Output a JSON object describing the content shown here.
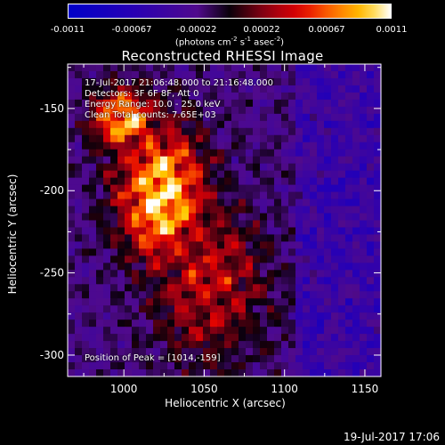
{
  "chart_data": {
    "type": "heatmap",
    "title": "Reconstructed RHESSI Image",
    "xlabel": "Heliocentric X (arcsec)",
    "ylabel": "Heliocentric Y (arcsec)",
    "xlim": [
      965,
      1160
    ],
    "ylim": [
      -313,
      -123
    ],
    "x_ticks": [
      1000,
      1050,
      1100,
      1150
    ],
    "y_ticks": [
      -150,
      -200,
      -250,
      -300
    ],
    "colorbar": {
      "ticks": [
        "-0.0011",
        "-0.00067",
        "-0.00022",
        "0.00022",
        "0.00067",
        "0.0011"
      ],
      "range": [
        -0.0011,
        0.0011
      ],
      "units": {
        "text": "(photons cm",
        "e1": "-2",
        "t2": " s",
        "e2": "-1",
        "t3": " asec",
        "e3": "-2",
        "t4": ")"
      }
    },
    "annotations": [
      "17-Jul-2017 21:06:48.000 to 21:16:48.000",
      "Detectors: 3F 6F 8F, Att 0",
      "Energy Range: 10.0 - 25.0 keV",
      "Clean     Total counts: 7.65E+03"
    ],
    "peak_label": "Position of Peak = [1014,-159]",
    "peak": [
      1014,
      -159
    ],
    "grid": false
  },
  "footer": "19-Jul-2017 17:06",
  "colors": {
    "background": "#000000",
    "axes": "#ffffff"
  }
}
